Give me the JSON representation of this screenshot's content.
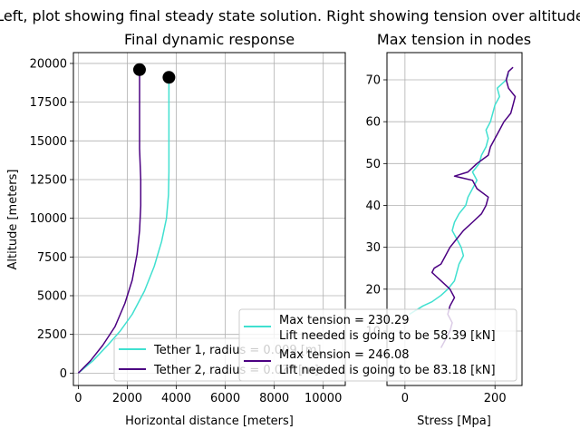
{
  "suptitle": "Left, plot showing final steady state solution. Right showing tension over altitude",
  "chart_data": [
    {
      "type": "line",
      "title": "Final dynamic response",
      "xlabel": "Horizontal distance [meters]",
      "ylabel": "Altitude [meters]",
      "xlim": [
        -200,
        10900
      ],
      "ylim": [
        -800,
        20700
      ],
      "xticks": [
        "0",
        "2000",
        "4000",
        "6000",
        "8000",
        "10000"
      ],
      "xtick_values": [
        0,
        2000,
        4000,
        6000,
        8000,
        10000
      ],
      "yticks": [
        "0",
        "2500",
        "5000",
        "7500",
        "10000",
        "12500",
        "15000",
        "17500",
        "20000"
      ],
      "ytick_values": [
        0,
        2500,
        5000,
        7500,
        10000,
        12500,
        15000,
        17500,
        20000
      ],
      "grid": true,
      "legend_position": "lower-right",
      "series": [
        {
          "name": "Tether 1, radius = 0.009 [m]",
          "color": "#40e0d0",
          "points": [
            [
              0,
              0
            ],
            [
              600,
              800
            ],
            [
              1200,
              1800
            ],
            [
              1700,
              2700
            ],
            [
              2200,
              3800
            ],
            [
              2700,
              5300
            ],
            [
              3100,
              6900
            ],
            [
              3400,
              8500
            ],
            [
              3600,
              10000
            ],
            [
              3680,
              11500
            ],
            [
              3700,
              13000
            ],
            [
              3700,
              15000
            ],
            [
              3700,
              17000
            ],
            [
              3700,
              19000
            ]
          ]
        },
        {
          "name": "Tether 2, radius = 0.0?? [m]",
          "color": "#4b0082",
          "points": [
            [
              0,
              0
            ],
            [
              500,
              800
            ],
            [
              1000,
              1800
            ],
            [
              1500,
              3000
            ],
            [
              1900,
              4500
            ],
            [
              2200,
              6000
            ],
            [
              2400,
              7700
            ],
            [
              2500,
              9200
            ],
            [
              2550,
              10800
            ],
            [
              2550,
              12500
            ],
            [
              2500,
              14500
            ],
            [
              2500,
              16500
            ],
            [
              2500,
              18500
            ],
            [
              2500,
              19600
            ]
          ]
        }
      ],
      "markers": [
        {
          "x": 2500,
          "y": 19600,
          "color": "#000000"
        },
        {
          "x": 3700,
          "y": 19100,
          "color": "#000000"
        }
      ]
    },
    {
      "type": "line",
      "title": "Max tension in nodes",
      "xlabel": "Stress [Mpa]",
      "ylabel": "",
      "xlim": [
        -40,
        260
      ],
      "ylim": [
        -3,
        76.5
      ],
      "xticks": [
        "0",
        "200"
      ],
      "xtick_values": [
        0,
        200
      ],
      "yticks": [
        "10",
        "20",
        "30",
        "40",
        "50",
        "60",
        "70"
      ],
      "ytick_values": [
        10,
        20,
        30,
        40,
        50,
        60,
        70
      ],
      "grid": true,
      "legend_position": "lower-left",
      "series": [
        {
          "name": "Max tension = 230.29\nLift needed is going to be 58.39 [kN]",
          "color": "#40e0d0",
          "points": [
            [
              10,
              14
            ],
            [
              40,
              16
            ],
            [
              60,
              17
            ],
            [
              80,
              18.5
            ],
            [
              95,
              20
            ],
            [
              110,
              22
            ],
            [
              115,
              24
            ],
            [
              120,
              26
            ],
            [
              130,
              28
            ],
            [
              125,
              30
            ],
            [
              115,
              32
            ],
            [
              105,
              34
            ],
            [
              110,
              36
            ],
            [
              120,
              38
            ],
            [
              135,
              40
            ],
            [
              140,
              42
            ],
            [
              150,
              44
            ],
            [
              160,
              46
            ],
            [
              150,
              48
            ],
            [
              165,
              50
            ],
            [
              170,
              52
            ],
            [
              180,
              54
            ],
            [
              185,
              56
            ],
            [
              180,
              58
            ],
            [
              190,
              60
            ],
            [
              195,
              62
            ],
            [
              200,
              64
            ],
            [
              210,
              66
            ],
            [
              205,
              68
            ],
            [
              225,
              70
            ],
            [
              230,
              71.5
            ]
          ]
        },
        {
          "name": "Max tension = 246.08\nLift needed is going to be 83.18 [kN]",
          "color": "#4b0082",
          "points": [
            [
              80,
              6
            ],
            [
              90,
              8
            ],
            [
              100,
              10
            ],
            [
              105,
              12
            ],
            [
              95,
              14
            ],
            [
              100,
              16
            ],
            [
              110,
              18
            ],
            [
              100,
              20
            ],
            [
              90,
              21
            ],
            [
              80,
              22
            ],
            [
              70,
              23
            ],
            [
              60,
              24
            ],
            [
              65,
              25
            ],
            [
              80,
              26
            ],
            [
              90,
              28
            ],
            [
              100,
              30
            ],
            [
              115,
              32
            ],
            [
              130,
              34
            ],
            [
              150,
              36
            ],
            [
              170,
              38
            ],
            [
              180,
              40
            ],
            [
              185,
              42
            ],
            [
              160,
              44
            ],
            [
              150,
              46
            ],
            [
              110,
              47
            ],
            [
              140,
              48
            ],
            [
              160,
              50
            ],
            [
              185,
              52
            ],
            [
              190,
              54
            ],
            [
              200,
              56
            ],
            [
              210,
              58
            ],
            [
              220,
              60
            ],
            [
              235,
              62
            ],
            [
              240,
              64
            ],
            [
              245,
              66
            ],
            [
              230,
              68
            ],
            [
              225,
              70
            ],
            [
              230,
              72
            ],
            [
              240,
              73
            ]
          ]
        }
      ]
    }
  ]
}
